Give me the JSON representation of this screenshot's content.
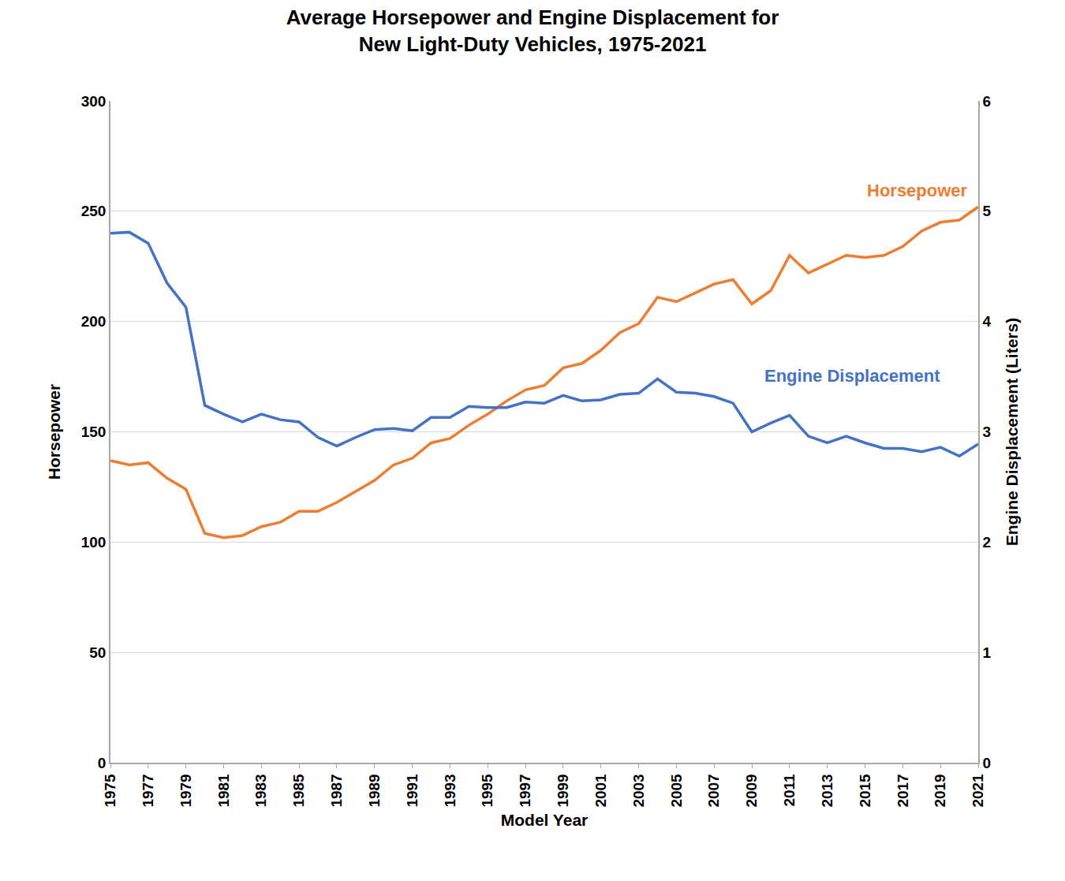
{
  "chart_data": {
    "type": "line",
    "title": "Average Horsepower and Engine Displacement for\nNew Light-Duty Vehicles, 1975-2021",
    "x_label": "Model Year",
    "y_label": "Horsepower",
    "y2_label": "Engine Displacement (Liters)",
    "x": [
      1975,
      1976,
      1977,
      1978,
      1979,
      1980,
      1981,
      1982,
      1983,
      1984,
      1985,
      1986,
      1987,
      1988,
      1989,
      1990,
      1991,
      1992,
      1993,
      1994,
      1995,
      1996,
      1997,
      1998,
      1999,
      2000,
      2001,
      2002,
      2003,
      2004,
      2005,
      2006,
      2007,
      2008,
      2009,
      2010,
      2011,
      2012,
      2013,
      2014,
      2015,
      2016,
      2017,
      2018,
      2019,
      2020,
      2021
    ],
    "series": [
      {
        "name": "Horsepower",
        "color": "#ED7D31",
        "axis": "y",
        "values": [
          137,
          135,
          136,
          129,
          124,
          104,
          102,
          103,
          107,
          109,
          114,
          114,
          118,
          123,
          128,
          135,
          138,
          145,
          147,
          153,
          158,
          164,
          169,
          171,
          179,
          181,
          187,
          195,
          199,
          211,
          209,
          213,
          217,
          219,
          208,
          214,
          230,
          222,
          226,
          230,
          229,
          230,
          234,
          241,
          245,
          246,
          252
        ]
      },
      {
        "name": "Engine Displacement",
        "color": "#4472C4",
        "axis": "y2",
        "values": [
          4.8,
          4.81,
          4.71,
          4.35,
          4.13,
          3.24,
          3.16,
          3.09,
          3.16,
          3.11,
          3.09,
          2.95,
          2.87,
          2.95,
          3.02,
          3.03,
          3.01,
          3.13,
          3.13,
          3.23,
          3.22,
          3.22,
          3.27,
          3.26,
          3.33,
          3.28,
          3.29,
          3.34,
          3.35,
          3.48,
          3.36,
          3.35,
          3.32,
          3.26,
          3.0,
          3.08,
          3.15,
          2.96,
          2.9,
          2.96,
          2.9,
          2.85,
          2.85,
          2.82,
          2.86,
          2.78,
          2.89
        ]
      }
    ],
    "xlim": [
      1975,
      2021
    ],
    "xticks": [
      1975,
      1977,
      1979,
      1981,
      1983,
      1985,
      1987,
      1989,
      1991,
      1993,
      1995,
      1997,
      1999,
      2001,
      2003,
      2005,
      2007,
      2009,
      2011,
      2013,
      2015,
      2017,
      2019,
      2021
    ],
    "ylim": [
      0,
      300
    ],
    "yticks": [
      0,
      50,
      100,
      150,
      200,
      250,
      300
    ],
    "y2lim": [
      0,
      6
    ],
    "y2ticks": [
      0,
      1,
      2,
      3,
      4,
      5,
      6
    ],
    "grid": true
  }
}
